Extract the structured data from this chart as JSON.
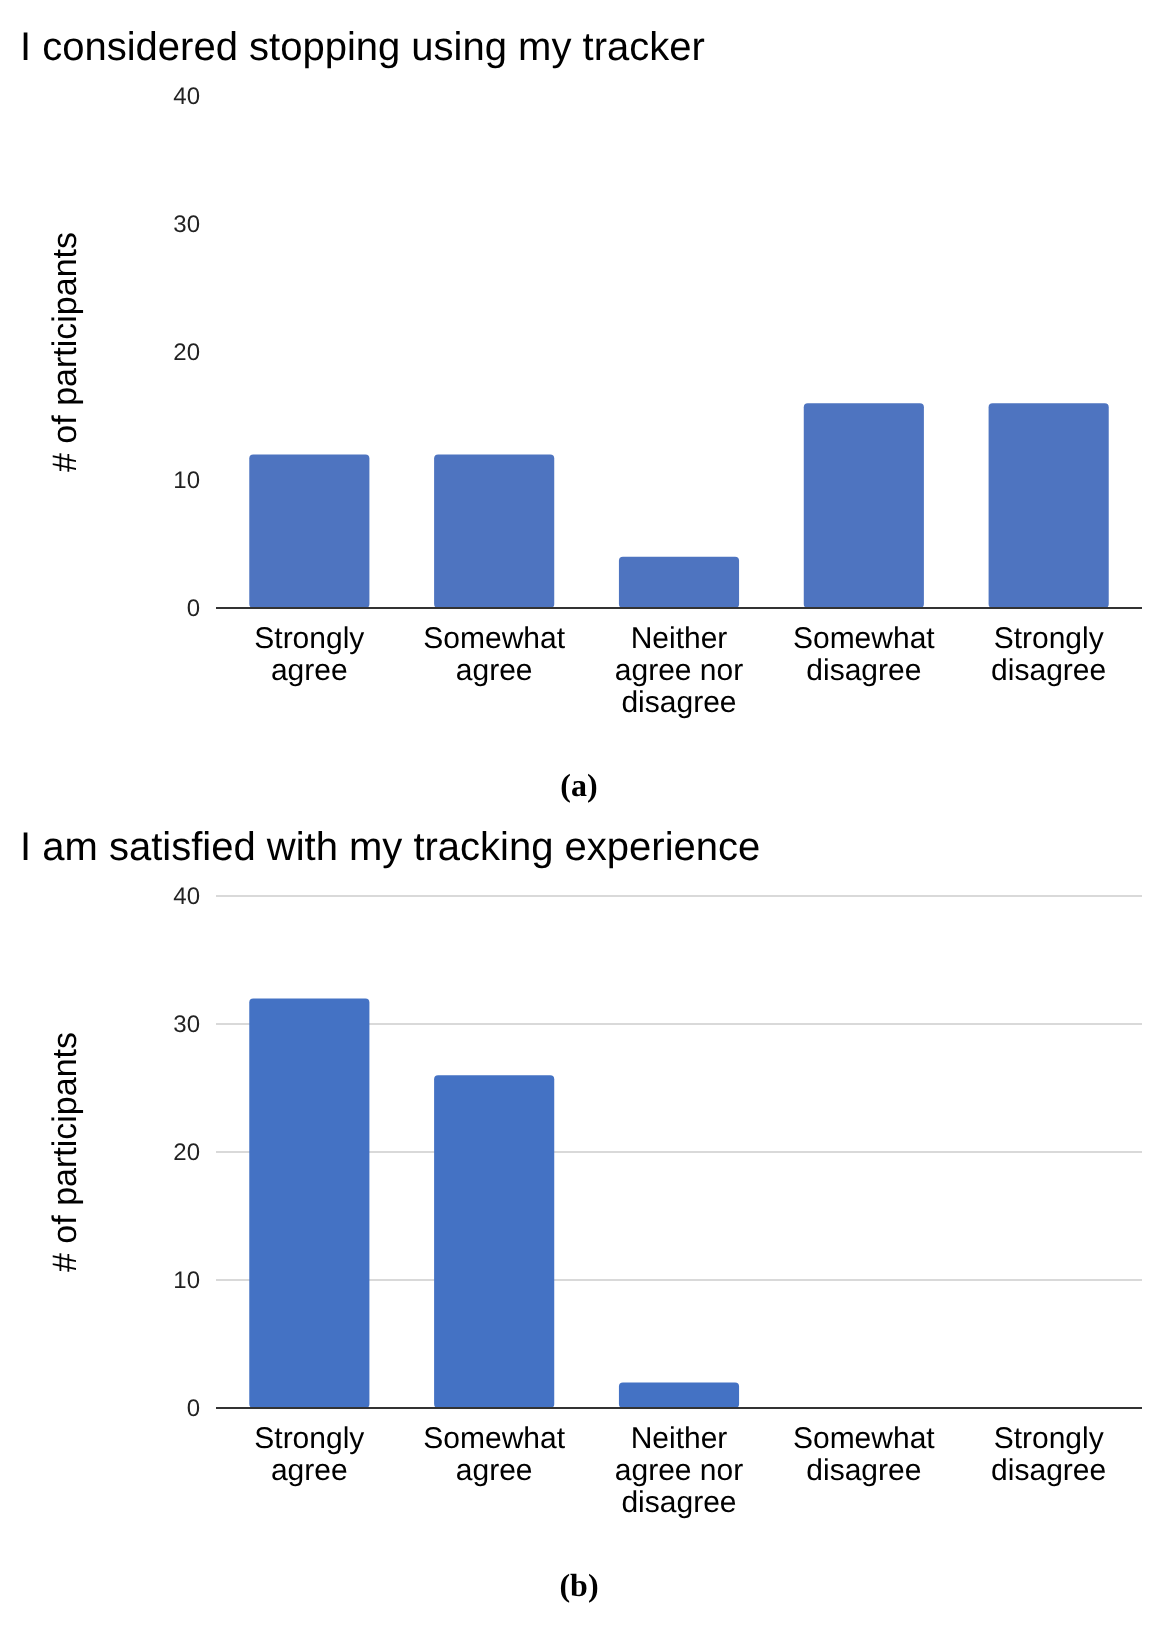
{
  "chart_data": [
    {
      "type": "bar",
      "title": "I considered stopping using my tracker",
      "ylabel": "# of participants",
      "categories": [
        "Strongly agree",
        "Somewhat agree",
        "Neither agree nor disagree",
        "Somewhat disagree",
        "Strongly disagree"
      ],
      "values": [
        12,
        12,
        4,
        16,
        16
      ],
      "color": "#4e74c0",
      "ylim": [
        0,
        40
      ],
      "yticks": [
        0,
        10,
        20,
        30,
        40
      ],
      "grid": false,
      "annotations": [
        "(a)"
      ]
    },
    {
      "type": "bar",
      "title": "I am satisfied with my tracking experience",
      "ylabel": "# of participants",
      "categories": [
        "Strongly agree",
        "Somewhat agree",
        "Neither agree nor disagree",
        "Somewhat disagree",
        "Strongly disagree"
      ],
      "values": [
        32,
        26,
        2,
        0,
        0
      ],
      "color": "#4472c4",
      "ylim": [
        0,
        40
      ],
      "yticks": [
        0,
        10,
        20,
        30,
        40
      ],
      "grid": "y",
      "annotations": [
        "(b)"
      ]
    }
  ]
}
